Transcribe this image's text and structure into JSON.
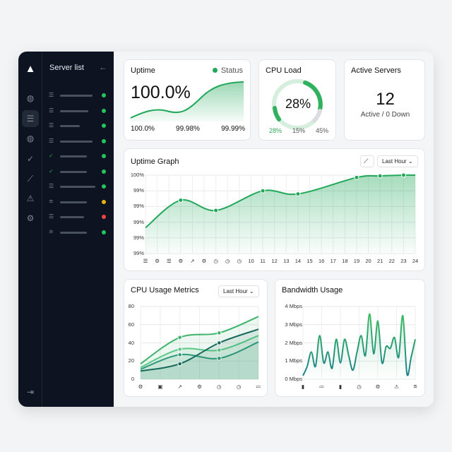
{
  "sidebar": {
    "title": "Server list",
    "rail_icons": [
      "logo-triangle-icon",
      "globe-icon",
      "server-icon",
      "globe-icon",
      "check-circle-icon",
      "chart-line-icon",
      "alert-triangle-icon",
      "gear-icon",
      "logout-icon"
    ],
    "active_rail_index": 2,
    "servers": [
      {
        "icon": "server-icon",
        "status": "#22c55e"
      },
      {
        "icon": "server-icon",
        "status": "#22c55e"
      },
      {
        "icon": "server-icon",
        "status": "#22c55e"
      },
      {
        "icon": "server-icon",
        "status": "#22c55e"
      },
      {
        "icon": "check-circle-icon",
        "status": "#22c55e"
      },
      {
        "icon": "check-circle-icon",
        "status": "#22c55e"
      },
      {
        "icon": "server-icon",
        "status": "#22c55e"
      },
      {
        "icon": "database-icon",
        "status": "#eab308"
      },
      {
        "icon": "server-icon",
        "status": "#ef4444"
      },
      {
        "icon": "database-icon",
        "status": "#22c55e"
      }
    ]
  },
  "uptime": {
    "title": "Uptime",
    "status_label": "Status",
    "value": "100.0%",
    "stats": [
      "100.0%",
      "99.98%",
      "99.99%"
    ]
  },
  "cpu_load": {
    "title": "CPU Load",
    "value": "28%",
    "percent": 28,
    "stats": [
      "28%",
      "15%",
      "45%"
    ]
  },
  "active_servers": {
    "title": "Active Servers",
    "count": "12",
    "subtitle": "Active / 0 Down"
  },
  "colors": {
    "accent": "#22a85a",
    "dark_teal": "#1f7a6a",
    "sidebar": "#0d1320"
  },
  "chart_data": [
    {
      "type": "area",
      "title": "Uptime Graph",
      "range_select": "Last Hour",
      "y_tick_labels": [
        "100%",
        "99%",
        "99%",
        "99%",
        "99%",
        "99%"
      ],
      "ylim": [
        99.0,
        100.0
      ],
      "x_tick_labels": [
        "",
        "",
        "",
        "",
        "",
        "",
        "",
        "",
        "",
        "10",
        "11",
        "12",
        "13",
        "14",
        "15",
        "16",
        "17",
        "18",
        "19",
        "20",
        "21",
        "22",
        "23",
        "24"
      ],
      "x_tick_icons": [
        "server-icon",
        "gear-icon",
        "server-icon",
        "gear-icon",
        "share-icon",
        "gear-icon",
        "clock-icon",
        "clock-icon",
        "clock-icon"
      ],
      "x": [
        1,
        4,
        7,
        11,
        14,
        19,
        21,
        23,
        24
      ],
      "values": [
        99.33,
        99.68,
        99.55,
        99.8,
        99.76,
        99.97,
        99.99,
        100.0,
        100.0
      ],
      "markers": [
        4,
        7,
        11,
        14,
        19,
        21,
        23
      ],
      "grid": true
    },
    {
      "type": "line",
      "title": "CPU Usage Metrics",
      "range_select": "Last Hour",
      "ylim": [
        0,
        80
      ],
      "y_tick_labels": [
        "80",
        "60",
        "40",
        "20",
        "0"
      ],
      "x_tick_icons": [
        "gear-icon",
        "cpu-icon",
        "share-icon",
        "gear-icon",
        "clock-icon",
        "clock-icon",
        "list-icon"
      ],
      "x": [
        0,
        2,
        4,
        6
      ],
      "series": [
        {
          "values": [
            17,
            46,
            51,
            69
          ],
          "color": "#3cb46a"
        },
        {
          "values": [
            13,
            33,
            32,
            48
          ],
          "color": "#5cc888"
        },
        {
          "values": [
            11,
            27,
            23,
            41
          ],
          "color": "#2f9a7a"
        },
        {
          "values": [
            9,
            17,
            40,
            55
          ],
          "color": "#17695c"
        }
      ],
      "grid": true
    },
    {
      "type": "area",
      "title": "Bandwidth Usage",
      "ylim": [
        0,
        4
      ],
      "y_tick_labels": [
        "4 Mbps",
        "3 Mbps",
        "2 Mbps",
        "1 Mbps",
        "0 Mbps"
      ],
      "x_tick_icons": [
        "bar-chart-icon",
        "list-icon",
        "bar-chart-icon",
        "clock-icon",
        "gear-icon",
        "alert-triangle-icon",
        "database-icon"
      ],
      "values": [
        0.2,
        0.7,
        1.5,
        0.7,
        2.4,
        0.9,
        1.5,
        0.6,
        2.2,
        0.9,
        2.2,
        1.3,
        0.5,
        1.5,
        2.4,
        1.3,
        3.6,
        1.4,
        3.2,
        0.9,
        1.8,
        1.7,
        2.3,
        1.2,
        3.5,
        0.3,
        1.2,
        2.2
      ],
      "grid": true
    }
  ]
}
